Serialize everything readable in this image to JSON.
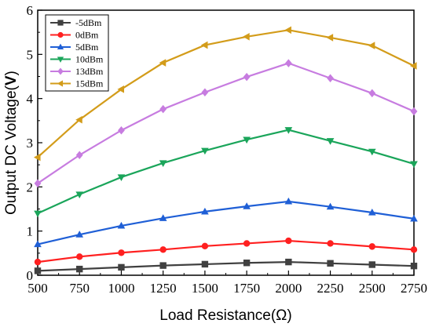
{
  "chart_data": {
    "type": "line",
    "title": "",
    "xlabel": "Load Resistance(Ω)",
    "ylabel_prefix": "Output DC Voltage(",
    "ylabel_unit": "V",
    "ylabel_suffix": ")",
    "x": [
      500,
      750,
      1000,
      1250,
      1500,
      1750,
      2000,
      2250,
      2500,
      2750
    ],
    "xlim": [
      500,
      2750
    ],
    "ylim": [
      0,
      6
    ],
    "xticks": [
      "500",
      "750",
      "1000",
      "1250",
      "1500",
      "1750",
      "2000",
      "2250",
      "2500",
      "2750"
    ],
    "yticks": [
      "0",
      "1",
      "2",
      "3",
      "4",
      "5",
      "6"
    ],
    "grid": false,
    "legend_position": "top-left",
    "series": [
      {
        "name": "-5dBm",
        "color": "#404040",
        "marker": "square",
        "values": [
          0.1,
          0.14,
          0.18,
          0.22,
          0.25,
          0.28,
          0.3,
          0.27,
          0.24,
          0.21
        ]
      },
      {
        "name": "0dBm",
        "color": "#ff2020",
        "marker": "circle",
        "values": [
          0.3,
          0.42,
          0.51,
          0.58,
          0.66,
          0.72,
          0.78,
          0.72,
          0.65,
          0.58
        ]
      },
      {
        "name": "5dBm",
        "color": "#1f5fd6",
        "marker": "triangle-up",
        "values": [
          0.7,
          0.92,
          1.12,
          1.29,
          1.44,
          1.56,
          1.67,
          1.55,
          1.42,
          1.28
        ]
      },
      {
        "name": "10dBm",
        "color": "#1aa55a",
        "marker": "triangle-down",
        "values": [
          1.4,
          1.83,
          2.22,
          2.54,
          2.82,
          3.07,
          3.29,
          3.04,
          2.8,
          2.52
        ]
      },
      {
        "name": "13dBm",
        "color": "#c77ce0",
        "marker": "diamond",
        "values": [
          2.08,
          2.72,
          3.28,
          3.76,
          4.14,
          4.49,
          4.8,
          4.46,
          4.12,
          3.71
        ]
      },
      {
        "name": "15dBm",
        "color": "#d39c1a",
        "marker": "triangle-left",
        "values": [
          2.67,
          3.52,
          4.21,
          4.81,
          5.21,
          5.4,
          5.55,
          5.38,
          5.2,
          4.74
        ]
      }
    ]
  }
}
